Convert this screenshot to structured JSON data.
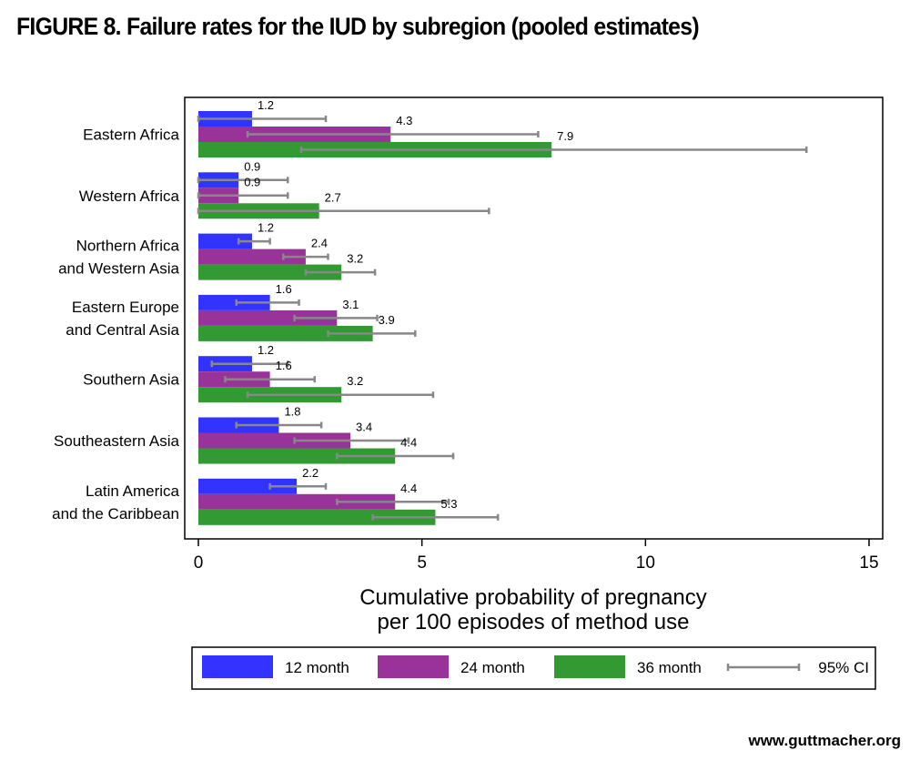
{
  "title": "FIGURE 8. Failure rates for the IUD by subregion (pooled estimates)",
  "footer": "www.guttmacher.org",
  "chart_data": {
    "type": "bar",
    "orientation": "horizontal",
    "categories": [
      [
        "Eastern Africa"
      ],
      [
        "Western Africa"
      ],
      [
        "Northern Africa",
        "and Western Asia"
      ],
      [
        "Eastern Europe",
        "and Central Asia"
      ],
      [
        "Southern Asia"
      ],
      [
        "Southeastern Asia"
      ],
      [
        "Latin America",
        "and the Caribbean"
      ]
    ],
    "series": [
      {
        "name": "12 month",
        "color": "#3333ff",
        "values": [
          1.2,
          0.9,
          1.2,
          1.6,
          1.2,
          1.8,
          2.2
        ],
        "labels": [
          "1.2",
          "0.9",
          "1.2",
          "1.6",
          "1.2",
          "1.8",
          "2.2"
        ],
        "ci_low": [
          0.0,
          0.0,
          0.9,
          0.85,
          0.3,
          0.85,
          1.6
        ],
        "ci_high": [
          2.85,
          2.0,
          1.6,
          2.25,
          2.0,
          2.75,
          2.85
        ]
      },
      {
        "name": "24 month",
        "color": "#993399",
        "values": [
          4.3,
          0.9,
          2.4,
          3.1,
          1.6,
          3.4,
          4.4
        ],
        "labels": [
          "4.3",
          "0.9",
          "2.4",
          "3.1",
          "1.6",
          "3.4",
          "4.4"
        ],
        "ci_low": [
          1.1,
          0.0,
          1.9,
          2.15,
          0.6,
          2.15,
          3.1
        ],
        "ci_high": [
          7.6,
          2.0,
          2.9,
          4.0,
          2.6,
          4.7,
          5.6
        ]
      },
      {
        "name": "36 month",
        "color": "#339933",
        "values": [
          7.9,
          2.7,
          3.2,
          3.9,
          3.2,
          4.4,
          5.3
        ],
        "labels": [
          "7.9",
          "2.7",
          "3.2",
          "3.9",
          "3.2",
          "4.4",
          "5.3"
        ],
        "ci_low": [
          2.3,
          0.0,
          2.4,
          2.9,
          1.1,
          3.1,
          3.9
        ],
        "ci_high": [
          13.6,
          6.5,
          3.95,
          4.85,
          5.25,
          5.7,
          6.7
        ]
      }
    ],
    "ci_color": "#888888",
    "xlim": [
      0,
      15
    ],
    "xticks": [
      "0",
      "5",
      "10",
      "15"
    ],
    "xlabel_lines": [
      "Cumulative probability of pregnancy",
      "per 100 episodes of method use"
    ],
    "legend": {
      "position": "bottom",
      "entries": [
        {
          "type": "bar",
          "label": "12 month",
          "color": "#3333ff"
        },
        {
          "type": "bar",
          "label": "24 month",
          "color": "#993399"
        },
        {
          "type": "bar",
          "label": "36 month",
          "color": "#339933"
        },
        {
          "type": "ci",
          "label": "95% CI",
          "color": "#888888"
        }
      ]
    },
    "grid": false
  }
}
